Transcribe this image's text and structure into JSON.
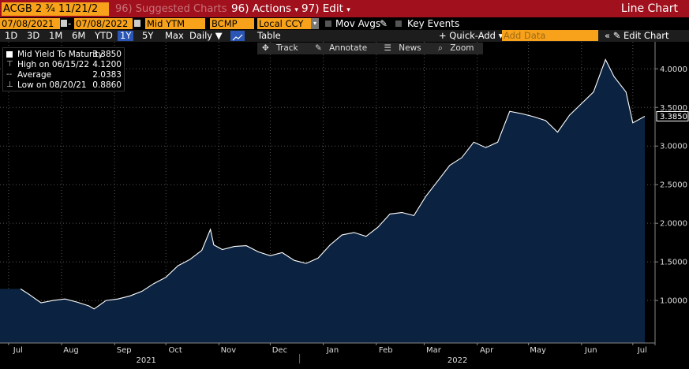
{
  "toolbar": {
    "ticker": "ACGB 2 ¾ 11/21/2",
    "suggested": "Suggested Charts",
    "suggested_num": "96",
    "actions": "Actions",
    "actions_num": "96",
    "edit": "Edit",
    "edit_num": "97",
    "title": "Line Chart"
  },
  "fields": {
    "start_date": "07/08/2021",
    "end_date": "07/08/2022",
    "field1": "Mid YTM",
    "field2": "BCMP",
    "currency": "Local CCY",
    "mov_avgs": "Mov Avgs",
    "key_events": "Key Events"
  },
  "ranges": {
    "items": [
      "1D",
      "3D",
      "1M",
      "6M",
      "YTD",
      "1Y",
      "5Y",
      "Max"
    ],
    "selected": "1Y",
    "frequency": "Daily ▼",
    "table": "Table",
    "quick_add": "+ Quick-Add ▾",
    "add_data_placeholder": "Add Data",
    "collapse": "«",
    "edit_chart": "Edit Chart"
  },
  "tools": {
    "track": "Track",
    "annotate": "Annotate",
    "news": "News",
    "zoom": "Zoom"
  },
  "legend": {
    "rows": [
      {
        "label": "Mid Yield To Maturity",
        "value": "3.3850"
      },
      {
        "label": "High on 06/15/22",
        "value": "4.1200"
      },
      {
        "label": "Average",
        "value": "2.0383"
      },
      {
        "label": "Low on 08/20/21",
        "value": "0.8860"
      }
    ]
  },
  "colors": {
    "brand_bar": "#a0111d",
    "field_orange": "#f7a21a",
    "area_fill": "#0b2340",
    "line": "#ffffff",
    "selected_blue": "#2b56b5"
  },
  "chart_data": {
    "type": "area",
    "title": "",
    "xlabel": "",
    "ylabel": "",
    "ylim": [
      0.45,
      4.35
    ],
    "yticks": [
      "1.0000",
      "1.5000",
      "2.0000",
      "2.5000",
      "3.0000",
      "3.5000",
      "4.0000"
    ],
    "ytick_values": [
      1.0,
      1.5,
      2.0,
      2.5,
      3.0,
      3.5,
      4.0
    ],
    "xticks": [
      "Jul",
      "Aug",
      "Sep",
      "Oct",
      "Nov",
      "Dec",
      "Jan",
      "Feb",
      "Mar",
      "Apr",
      "May",
      "Jun",
      "Jul"
    ],
    "xtick_dates": [
      "2021-07-01",
      "2021-08-01",
      "2021-09-01",
      "2021-10-01",
      "2021-11-01",
      "2021-12-01",
      "2022-01-01",
      "2022-02-01",
      "2022-03-01",
      "2022-04-01",
      "2022-05-01",
      "2022-06-01",
      "2022-07-01"
    ],
    "year_labels": [
      {
        "label": "2021",
        "date": "2021-10-01"
      },
      {
        "label": "2022",
        "date": "2022-04-01"
      }
    ],
    "last_value_label": "3.3850",
    "x": [
      "2021-07-08",
      "2021-07-13",
      "2021-07-20",
      "2021-07-27",
      "2021-08-03",
      "2021-08-10",
      "2021-08-17",
      "2021-08-20",
      "2021-08-27",
      "2021-09-03",
      "2021-09-10",
      "2021-09-17",
      "2021-09-24",
      "2021-10-01",
      "2021-10-08",
      "2021-10-15",
      "2021-10-22",
      "2021-10-27",
      "2021-10-29",
      "2021-11-03",
      "2021-11-10",
      "2021-11-17",
      "2021-11-24",
      "2021-12-01",
      "2021-12-08",
      "2021-12-15",
      "2021-12-22",
      "2021-12-29",
      "2022-01-05",
      "2022-01-12",
      "2022-01-19",
      "2022-01-26",
      "2022-02-02",
      "2022-02-09",
      "2022-02-16",
      "2022-02-23",
      "2022-03-02",
      "2022-03-09",
      "2022-03-16",
      "2022-03-23",
      "2022-03-30",
      "2022-04-06",
      "2022-04-13",
      "2022-04-20",
      "2022-04-27",
      "2022-05-04",
      "2022-05-11",
      "2022-05-18",
      "2022-05-25",
      "2022-06-01",
      "2022-06-08",
      "2022-06-15",
      "2022-06-20",
      "2022-06-27",
      "2022-07-01",
      "2022-07-08"
    ],
    "series": [
      {
        "values": [
          1.15,
          1.08,
          0.97,
          1.0,
          1.02,
          0.98,
          0.93,
          0.89,
          1.0,
          1.02,
          1.06,
          1.12,
          1.22,
          1.3,
          1.45,
          1.53,
          1.65,
          1.92,
          1.72,
          1.66,
          1.7,
          1.71,
          1.63,
          1.58,
          1.62,
          1.52,
          1.48,
          1.55,
          1.72,
          1.85,
          1.88,
          1.83,
          1.95,
          2.12,
          2.14,
          2.1,
          2.35,
          2.55,
          2.75,
          2.85,
          3.05,
          2.98,
          3.05,
          3.45,
          3.42,
          3.38,
          3.33,
          3.18,
          3.4,
          3.55,
          3.7,
          4.12,
          3.9,
          3.7,
          3.3,
          3.385
        ]
      }
    ]
  }
}
